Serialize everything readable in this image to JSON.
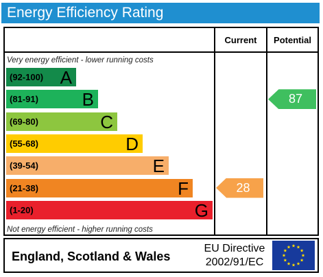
{
  "header": {
    "title": "Energy Efficiency Rating"
  },
  "columns": {
    "current": "Current",
    "potential": "Potential"
  },
  "notes": {
    "top": "Very energy efficient - lower running costs",
    "bottom": "Not energy efficient - higher running costs"
  },
  "bands": [
    {
      "range": "(92-100)",
      "letter": "A",
      "color": "#138a4a"
    },
    {
      "range": "(81-91)",
      "letter": "B",
      "color": "#1db25a"
    },
    {
      "range": "(69-80)",
      "letter": "C",
      "color": "#8dc63f"
    },
    {
      "range": "(55-68)",
      "letter": "D",
      "color": "#ffcc00"
    },
    {
      "range": "(39-54)",
      "letter": "E",
      "color": "#f7ae6a"
    },
    {
      "range": "(21-38)",
      "letter": "F",
      "color": "#f08522"
    },
    {
      "range": "(1-20)",
      "letter": "G",
      "color": "#e9202c"
    }
  ],
  "ratings": {
    "current": {
      "value": "28",
      "band": "F",
      "color": "#f7a24a"
    },
    "potential": {
      "value": "87",
      "band": "B",
      "color": "#3fbf5f"
    }
  },
  "footer": {
    "country": "England, Scotland & Wales",
    "directive_line1": "EU Directive",
    "directive_line2": "2002/91/EC",
    "flag_icon": "eu-flag-icon"
  }
}
